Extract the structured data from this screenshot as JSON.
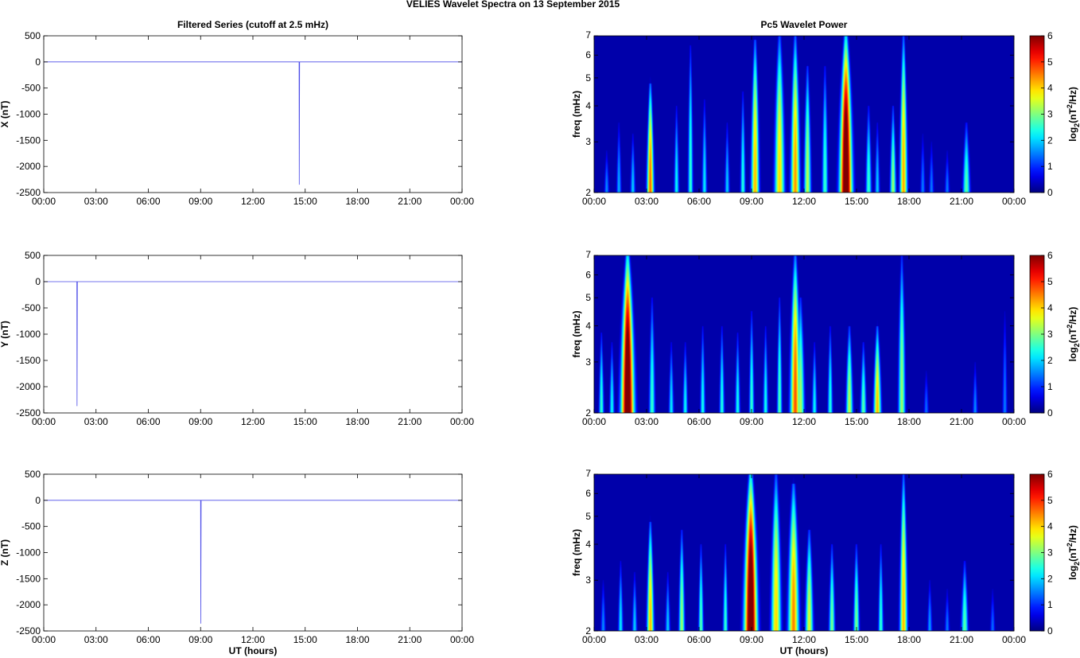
{
  "figure": {
    "suptitle": "VELIES Wavelet Spectra on 13 September 2015"
  },
  "colors": {
    "trace": "#4a4ae8",
    "background_low": "#00008f"
  },
  "chart_data": [
    {
      "type": "line",
      "id": "x-series",
      "title": "Filtered Series (cutoff at 2.5 mHz)",
      "xlabel": "",
      "ylabel": "X (nT)",
      "xlim": [
        0,
        24
      ],
      "ylim": [
        -2500,
        500
      ],
      "xticks": [
        "00:00",
        "03:00",
        "06:00",
        "09:00",
        "12:00",
        "15:00",
        "18:00",
        "21:00",
        "00:00"
      ],
      "yticks": [
        500,
        0,
        -500,
        -1000,
        -1500,
        -2000,
        -2500
      ],
      "x": [
        0,
        14.65,
        14.66,
        14.68,
        24
      ],
      "y": [
        0,
        0,
        -2350,
        0,
        0
      ]
    },
    {
      "type": "line",
      "id": "y-series",
      "title": "",
      "xlabel": "",
      "ylabel": "Y (nT)",
      "xlim": [
        0,
        24
      ],
      "ylim": [
        -2500,
        500
      ],
      "xticks": [
        "00:00",
        "03:00",
        "06:00",
        "09:00",
        "12:00",
        "15:00",
        "18:00",
        "21:00",
        "00:00"
      ],
      "yticks": [
        500,
        0,
        -500,
        -1000,
        -1500,
        -2000,
        -2500
      ],
      "x": [
        0,
        1.9,
        1.91,
        1.93,
        24
      ],
      "y": [
        0,
        0,
        -2370,
        0,
        0
      ]
    },
    {
      "type": "line",
      "id": "z-series",
      "title": "",
      "xlabel": "UT (hours)",
      "ylabel": "Z (nT)",
      "xlim": [
        0,
        24
      ],
      "ylim": [
        -2500,
        500
      ],
      "xticks": [
        "00:00",
        "03:00",
        "06:00",
        "09:00",
        "12:00",
        "15:00",
        "18:00",
        "21:00",
        "00:00"
      ],
      "yticks": [
        500,
        0,
        -500,
        -1000,
        -1500,
        -2000,
        -2500
      ],
      "x": [
        0,
        9.0,
        9.01,
        9.03,
        24
      ],
      "y": [
        0,
        0,
        -2360,
        0,
        0
      ]
    },
    {
      "type": "heatmap",
      "id": "x-wavelet",
      "title": "Pc5 Wavelet Power",
      "xlabel": "",
      "ylabel": "freq (mHz)",
      "xlim": [
        0,
        24
      ],
      "ylim": [
        2,
        7
      ],
      "yscale": "log",
      "xticks": [
        "00:00",
        "03:00",
        "06:00",
        "09:00",
        "12:00",
        "15:00",
        "18:00",
        "21:00",
        "00:00"
      ],
      "yticks": [
        2,
        3,
        4,
        5,
        6,
        7
      ],
      "colorbar": {
        "label": "log2(nT2/Hz)",
        "label_base": "log",
        "label_sub": "2",
        "label_open": "(nT",
        "label_sup": "2",
        "label_close": "/Hz)",
        "ticks": [
          0,
          1,
          2,
          3,
          4,
          5,
          6
        ],
        "range": [
          0,
          6
        ]
      },
      "features": [
        {
          "t": 14.4,
          "w": 0.25,
          "top": 7,
          "p": 7
        },
        {
          "t": 3.2,
          "w": 0.14,
          "top": 4.8,
          "p": 4.7
        },
        {
          "t": 9.2,
          "w": 0.16,
          "top": 6.8,
          "p": 4.2
        },
        {
          "t": 10.6,
          "w": 0.2,
          "top": 7,
          "p": 4.0
        },
        {
          "t": 11.5,
          "w": 0.18,
          "top": 7,
          "p": 4.4
        },
        {
          "t": 12.2,
          "w": 0.14,
          "top": 5.5,
          "p": 3.4
        },
        {
          "t": 17.7,
          "w": 0.15,
          "top": 7,
          "p": 4.3
        },
        {
          "t": 17.1,
          "w": 0.12,
          "top": 4.0,
          "p": 3.2
        },
        {
          "t": 21.3,
          "w": 0.15,
          "top": 3.5,
          "p": 2.8
        },
        {
          "t": 4.7,
          "w": 0.1,
          "top": 4.0,
          "p": 2.3
        },
        {
          "t": 5.5,
          "w": 0.1,
          "top": 6.5,
          "p": 2.6
        },
        {
          "t": 6.3,
          "w": 0.1,
          "top": 4.2,
          "p": 2.2
        },
        {
          "t": 7.6,
          "w": 0.1,
          "top": 3.5,
          "p": 2.0
        },
        {
          "t": 8.5,
          "w": 0.1,
          "top": 4.5,
          "p": 2.5
        },
        {
          "t": 13.2,
          "w": 0.12,
          "top": 5.5,
          "p": 2.6
        },
        {
          "t": 15.7,
          "w": 0.12,
          "top": 4.0,
          "p": 2.6
        },
        {
          "t": 16.2,
          "w": 0.1,
          "top": 3.5,
          "p": 2.0
        },
        {
          "t": 1.4,
          "w": 0.1,
          "top": 3.5,
          "p": 1.8
        },
        {
          "t": 2.2,
          "w": 0.1,
          "top": 3.2,
          "p": 2.0
        },
        {
          "t": 19.3,
          "w": 0.1,
          "top": 3.0,
          "p": 1.5
        },
        {
          "t": 20.2,
          "w": 0.1,
          "top": 2.8,
          "p": 1.5
        },
        {
          "t": 0.7,
          "w": 0.1,
          "top": 2.8,
          "p": 1.6
        },
        {
          "t": 18.8,
          "w": 0.1,
          "top": 3.2,
          "p": 1.5
        }
      ]
    },
    {
      "type": "heatmap",
      "id": "y-wavelet",
      "title": "",
      "xlabel": "",
      "ylabel": "freq (mHz)",
      "xlim": [
        0,
        24
      ],
      "ylim": [
        2,
        7
      ],
      "yscale": "log",
      "xticks": [
        "00:00",
        "03:00",
        "06:00",
        "09:00",
        "12:00",
        "15:00",
        "18:00",
        "21:00",
        "00:00"
      ],
      "yticks": [
        2,
        3,
        4,
        5,
        6,
        7
      ],
      "colorbar": {
        "label": "log2(nT2/Hz)",
        "label_base": "log",
        "label_sub": "2",
        "label_open": "(nT",
        "label_sup": "2",
        "label_close": "/Hz)",
        "ticks": [
          0,
          1,
          2,
          3,
          4,
          5,
          6
        ],
        "range": [
          0,
          6
        ]
      },
      "features": [
        {
          "t": 1.9,
          "w": 0.26,
          "top": 7,
          "p": 7
        },
        {
          "t": 11.5,
          "w": 0.2,
          "top": 7,
          "p": 4.8
        },
        {
          "t": 11.8,
          "w": 0.16,
          "top": 5.0,
          "p": 3.3
        },
        {
          "t": 16.2,
          "w": 0.15,
          "top": 4.0,
          "p": 4.2
        },
        {
          "t": 14.6,
          "w": 0.14,
          "top": 4.0,
          "p": 3.4
        },
        {
          "t": 15.4,
          "w": 0.12,
          "top": 3.5,
          "p": 2.8
        },
        {
          "t": 17.6,
          "w": 0.14,
          "top": 7,
          "p": 3.2
        },
        {
          "t": 3.3,
          "w": 0.12,
          "top": 5.0,
          "p": 2.6
        },
        {
          "t": 4.4,
          "w": 0.1,
          "top": 3.5,
          "p": 2.2
        },
        {
          "t": 5.2,
          "w": 0.1,
          "top": 3.5,
          "p": 2.3
        },
        {
          "t": 6.2,
          "w": 0.1,
          "top": 4.0,
          "p": 2.4
        },
        {
          "t": 7.3,
          "w": 0.1,
          "top": 4.0,
          "p": 2.5
        },
        {
          "t": 8.2,
          "w": 0.1,
          "top": 3.8,
          "p": 2.4
        },
        {
          "t": 9.0,
          "w": 0.1,
          "top": 4.5,
          "p": 2.6
        },
        {
          "t": 9.8,
          "w": 0.1,
          "top": 4.0,
          "p": 2.4
        },
        {
          "t": 10.6,
          "w": 0.1,
          "top": 5.0,
          "p": 2.8
        },
        {
          "t": 12.6,
          "w": 0.1,
          "top": 3.5,
          "p": 2.3
        },
        {
          "t": 13.5,
          "w": 0.1,
          "top": 4.0,
          "p": 2.5
        },
        {
          "t": 0.4,
          "w": 0.1,
          "top": 3.8,
          "p": 2.6
        },
        {
          "t": 1.0,
          "w": 0.1,
          "top": 3.5,
          "p": 2.3
        },
        {
          "t": 19.0,
          "w": 0.1,
          "top": 2.8,
          "p": 1.4
        },
        {
          "t": 21.8,
          "w": 0.1,
          "top": 3.0,
          "p": 1.6
        },
        {
          "t": 23.5,
          "w": 0.1,
          "top": 4.5,
          "p": 1.5
        }
      ]
    },
    {
      "type": "heatmap",
      "id": "z-wavelet",
      "title": "",
      "xlabel": "UT (hours)",
      "ylabel": "freq (mHz)",
      "xlim": [
        0,
        24
      ],
      "ylim": [
        2,
        7
      ],
      "yscale": "log",
      "xticks": [
        "00:00",
        "03:00",
        "06:00",
        "09:00",
        "12:00",
        "15:00",
        "18:00",
        "21:00",
        "00:00"
      ],
      "yticks": [
        2,
        3,
        4,
        5,
        6,
        7
      ],
      "colorbar": {
        "label": "log2(nT2/Hz)",
        "label_base": "log",
        "label_sub": "2",
        "label_open": "(nT",
        "label_sup": "2",
        "label_close": "/Hz)",
        "ticks": [
          0,
          1,
          2,
          3,
          4,
          5,
          6
        ],
        "range": [
          0,
          6
        ]
      },
      "features": [
        {
          "t": 8.95,
          "w": 0.26,
          "top": 7,
          "p": 7
        },
        {
          "t": 3.2,
          "w": 0.14,
          "top": 4.8,
          "p": 4.2
        },
        {
          "t": 10.4,
          "w": 0.2,
          "top": 7,
          "p": 4.0
        },
        {
          "t": 11.4,
          "w": 0.22,
          "top": 6.5,
          "p": 4.5
        },
        {
          "t": 12.3,
          "w": 0.16,
          "top": 4.5,
          "p": 3.6
        },
        {
          "t": 17.7,
          "w": 0.15,
          "top": 7,
          "p": 4.2
        },
        {
          "t": 5.0,
          "w": 0.12,
          "top": 4.5,
          "p": 3.2
        },
        {
          "t": 6.1,
          "w": 0.1,
          "top": 4.0,
          "p": 2.8
        },
        {
          "t": 7.5,
          "w": 0.1,
          "top": 4.0,
          "p": 2.6
        },
        {
          "t": 13.6,
          "w": 0.12,
          "top": 4.0,
          "p": 3.0
        },
        {
          "t": 15.0,
          "w": 0.12,
          "top": 4.0,
          "p": 3.0
        },
        {
          "t": 16.4,
          "w": 0.1,
          "top": 4.0,
          "p": 2.6
        },
        {
          "t": 21.2,
          "w": 0.14,
          "top": 3.5,
          "p": 2.8
        },
        {
          "t": 1.5,
          "w": 0.1,
          "top": 3.5,
          "p": 2.2
        },
        {
          "t": 2.3,
          "w": 0.1,
          "top": 3.2,
          "p": 2.0
        },
        {
          "t": 0.5,
          "w": 0.1,
          "top": 3.0,
          "p": 1.6
        },
        {
          "t": 19.2,
          "w": 0.1,
          "top": 3.0,
          "p": 1.7
        },
        {
          "t": 20.2,
          "w": 0.1,
          "top": 2.8,
          "p": 1.5
        },
        {
          "t": 22.8,
          "w": 0.1,
          "top": 2.8,
          "p": 1.4
        },
        {
          "t": 4.2,
          "w": 0.1,
          "top": 3.2,
          "p": 2.0
        }
      ]
    }
  ]
}
